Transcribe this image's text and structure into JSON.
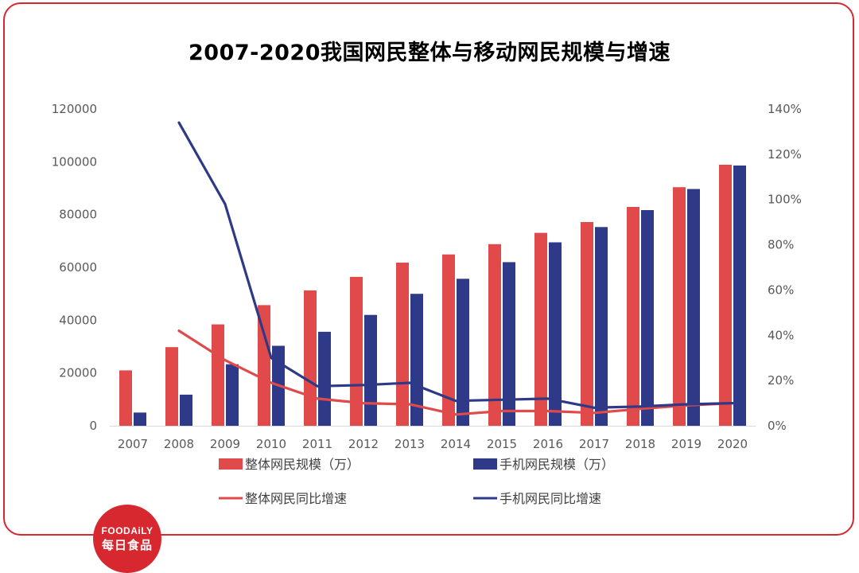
{
  "chart_data": {
    "type": "bar",
    "title": "2007-2020我国网民整体与移动网民规模与增速",
    "categories": [
      "2007",
      "2008",
      "2009",
      "2010",
      "2011",
      "2012",
      "2013",
      "2014",
      "2015",
      "2016",
      "2017",
      "2018",
      "2019",
      "2020"
    ],
    "y_left_ticks": [
      "120000",
      "100000",
      "80000",
      "60000",
      "40000",
      "20000",
      "0"
    ],
    "y_right_ticks": [
      "140%",
      "120%",
      "100%",
      "80%",
      "60%",
      "40%",
      "20%",
      "0%"
    ],
    "ylim_left": [
      0,
      120000
    ],
    "ylim_right": [
      0,
      1.4
    ],
    "series": [
      {
        "name": "整体网民规模（万）",
        "kind": "bar",
        "axis": "left",
        "color": "#e04a4a",
        "values": [
          21000,
          29800,
          38400,
          45700,
          51300,
          56400,
          61800,
          64900,
          68800,
          73100,
          77200,
          82900,
          90400,
          98900
        ]
      },
      {
        "name": "手机网民规模（万）",
        "kind": "bar",
        "axis": "left",
        "color": "#2e3a87",
        "values": [
          5000,
          11800,
          23300,
          30300,
          35600,
          42000,
          50000,
          55700,
          62000,
          69500,
          75300,
          81700,
          89700,
          98600
        ]
      },
      {
        "name": "整体网民同比增速",
        "kind": "line",
        "axis": "right",
        "color": "#e04a4a",
        "values": [
          null,
          0.42,
          0.29,
          0.19,
          0.12,
          0.1,
          0.095,
          0.05,
          0.065,
          0.065,
          0.057,
          0.075,
          0.09,
          0.1
        ]
      },
      {
        "name": "手机网民同比增速",
        "kind": "line",
        "axis": "right",
        "color": "#2e3a87",
        "values": [
          null,
          1.34,
          0.98,
          0.3,
          0.175,
          0.18,
          0.19,
          0.11,
          0.115,
          0.12,
          0.08,
          0.085,
          0.095,
          0.1
        ]
      }
    ],
    "legend_position": "bottom",
    "grid": false
  },
  "logo": {
    "en": "FOODAiLY",
    "cn": "每日食品"
  }
}
